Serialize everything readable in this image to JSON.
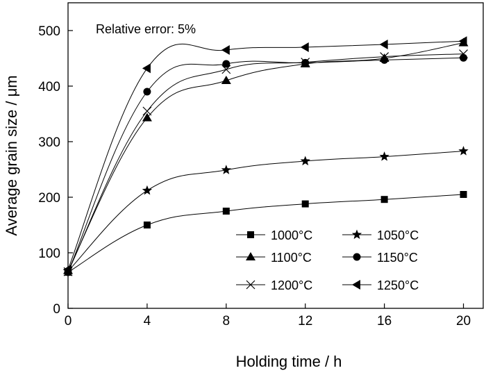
{
  "chart_data": {
    "type": "line",
    "xlabel": "Holding time / h",
    "ylabel": "Average grain size / μm",
    "annotation": "Relative error: 5%",
    "xlim": [
      0,
      21
    ],
    "ylim": [
      0,
      550
    ],
    "xticks": [
      0,
      4,
      8,
      12,
      16,
      20
    ],
    "yticks": [
      0,
      100,
      200,
      300,
      400,
      500
    ],
    "grid": false,
    "legend_position": "bottom-right",
    "x": [
      0,
      4,
      8,
      12,
      16,
      20
    ],
    "series": [
      {
        "name": "1000°C",
        "marker": "square",
        "values": [
          65,
          150,
          175,
          188,
          196,
          205
        ]
      },
      {
        "name": "1050°C",
        "marker": "star",
        "values": [
          67,
          212,
          249,
          265,
          273,
          283
        ]
      },
      {
        "name": "1100°C",
        "marker": "triangle-up",
        "values": [
          68,
          343,
          410,
          440,
          450,
          478
        ]
      },
      {
        "name": "1150°C",
        "marker": "circle",
        "values": [
          65,
          390,
          440,
          442,
          447,
          451
        ]
      },
      {
        "name": "1200°C",
        "marker": "x",
        "values": [
          66,
          355,
          430,
          443,
          453,
          458
        ]
      },
      {
        "name": "1250°C",
        "marker": "triangle-left",
        "values": [
          70,
          432,
          465,
          470,
          475,
          481
        ]
      }
    ]
  }
}
